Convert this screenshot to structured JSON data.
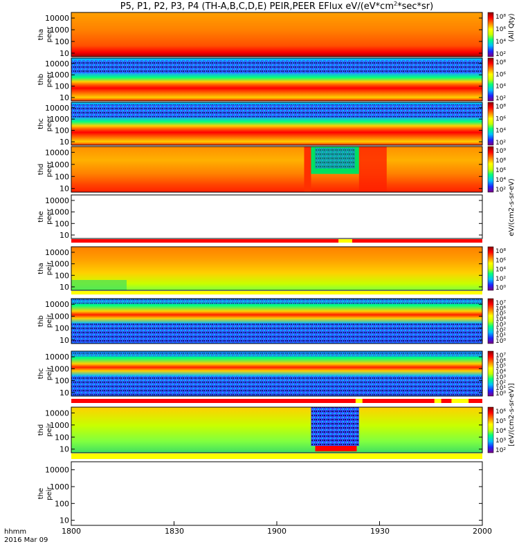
{
  "chart_data": {
    "type": "heatmap",
    "title": "P5, P1, P2, P3, P4 (TH-A,B,C,D,E) PEIR,PEER EFlux eV/(eV*cm²*sec*sr)",
    "title_parts": {
      "main": "P5, P1, P2, P3, P4 (TH-A,B,C,D,E) PEIR,PEER EFlux eV/(eV*cm",
      "sup1": "2",
      "mid": "*sec*sr)"
    },
    "xaxis": {
      "ticks": [
        "1800",
        "1830",
        "1900",
        "1930",
        "2000"
      ],
      "range_minutes": [
        0,
        120
      ],
      "corner_label_1": "hhmm",
      "corner_label_2": "2016 Mar 09"
    },
    "yaxis_ticks": [
      "10",
      "100",
      "1000",
      "10000"
    ],
    "colorbar_label": "eV/(cm2-s-sr-eV)",
    "colorbar_label_alt": "[eV/(cm2-s-sr-eV)]",
    "colorbar_label_tail": "(All Qty)",
    "panels": [
      {
        "probe": "tha",
        "species": "peer",
        "label1": "tha",
        "label2": "peer",
        "has_data": true,
        "cbar_ticks": [
          "10⁸",
          "10⁶",
          "10⁴",
          "10²"
        ],
        "flag_bar": null
      },
      {
        "probe": "thb",
        "species": "peer",
        "label1": "thb",
        "label2": "peer",
        "has_data": true,
        "cbar_ticks": [
          "10⁸",
          "10⁶",
          "10⁴",
          "10²"
        ],
        "flag_bar": null
      },
      {
        "probe": "thc",
        "species": "peer",
        "label1": "thc",
        "label2": "peer",
        "has_data": true,
        "cbar_ticks": [
          "10⁸",
          "10⁶",
          "10⁴",
          "10²"
        ],
        "flag_bar": null
      },
      {
        "probe": "thd",
        "species": "peer",
        "label1": "thd",
        "label2": "peer",
        "has_data": true,
        "cbar_ticks": [
          "10⁹",
          "10⁸",
          "10⁶",
          "10⁴",
          "10²"
        ],
        "flag_bar": null
      },
      {
        "probe": "the",
        "species": "peer",
        "label1": "the",
        "label2": "peer",
        "has_data": false,
        "cbar_ticks": [],
        "flag_bar": {
          "color": "#ff0000",
          "segments": [
            [
              78,
              82,
              "#ffff00"
            ]
          ]
        }
      },
      {
        "probe": "tha",
        "species": "peir",
        "label1": "tha",
        "label2": "peir",
        "has_data": true,
        "cbar_ticks": [
          "10⁸",
          "10⁶",
          "10⁴",
          "10²",
          "10⁰"
        ],
        "flag_bar": {
          "color": "#ffff00",
          "segments": []
        }
      },
      {
        "probe": "thb",
        "species": "peir",
        "label1": "thb",
        "label2": "peir",
        "has_data": true,
        "cbar_ticks": [
          "10⁷",
          "10⁶",
          "10⁵",
          "10⁴",
          "10³",
          "10²",
          "10¹",
          "10⁰"
        ],
        "flag_bar": null
      },
      {
        "probe": "thc",
        "species": "peir",
        "label1": "thc",
        "label2": "peir",
        "has_data": true,
        "cbar_ticks": [
          "10⁷",
          "10⁶",
          "10⁵",
          "10⁴",
          "10³",
          "10²",
          "10¹",
          "10⁰"
        ],
        "flag_bar": {
          "color": "#ff0000",
          "segments": [
            [
              83,
              85,
              "#ffff00"
            ],
            [
              106,
              108,
              "#ffff00"
            ],
            [
              111,
              116,
              "#ffff00"
            ]
          ]
        }
      },
      {
        "probe": "thd",
        "species": "peir",
        "label1": "thd",
        "label2": "peir",
        "has_data": true,
        "cbar_ticks": [
          "10⁶",
          "10⁵",
          "10⁴",
          "10³",
          "10²"
        ],
        "flag_bar": {
          "color": "#ffff00",
          "segments": []
        }
      },
      {
        "probe": "the",
        "species": "peir",
        "label1": "the",
        "label2": "peir",
        "has_data": false,
        "cbar_ticks": [],
        "flag_bar": null
      }
    ],
    "features": {
      "thd_peer_gap_minutes": [
        70,
        84
      ],
      "thd_peir_gap_minutes": [
        70,
        84
      ]
    },
    "colormap": [
      "#7f007f",
      "#2020ff",
      "#00bfff",
      "#00ff80",
      "#c8ff00",
      "#ffff00",
      "#ff8000",
      "#ff0000",
      "#8b0000"
    ],
    "grid": false,
    "legend": "colorbar-right"
  }
}
